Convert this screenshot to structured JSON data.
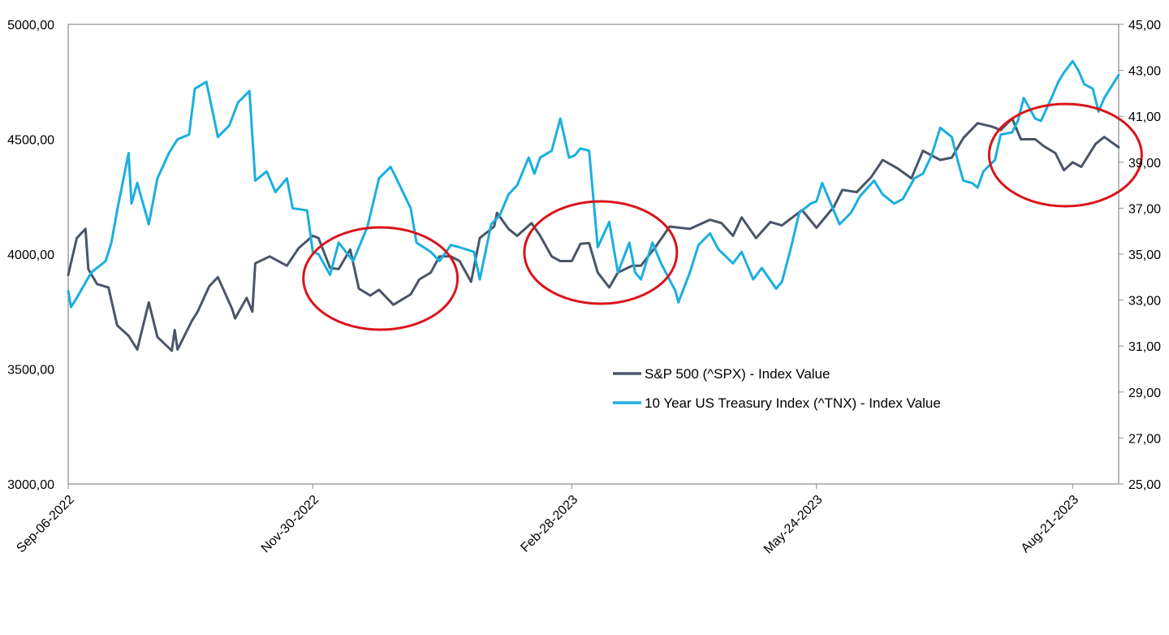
{
  "chart_data": {
    "type": "line",
    "x_ticks": [
      "Sep-06-2022",
      "Nov-30-2022",
      "Feb-28-2023",
      "May-24-2023",
      "Aug-21-2023"
    ],
    "y_left": {
      "range": [
        3000,
        5000
      ],
      "ticks": [
        "3000,00",
        "3500,00",
        "4000,00",
        "4500,00",
        "5000,00"
      ]
    },
    "y_right": {
      "range": [
        25,
        45
      ],
      "ticks": [
        "25,00",
        "27,00",
        "29,00",
        "31,00",
        "33,00",
        "35,00",
        "37,00",
        "39,00",
        "41,00",
        "43,00",
        "45,00"
      ]
    },
    "grid": false,
    "legend_position": "center-right",
    "highlight_color": "#d9151b",
    "highlights": [
      {
        "from": "2022-11-30",
        "to": "2023-01-16"
      },
      {
        "from": "2023-02-14",
        "to": "2023-04-03"
      },
      {
        "from": "2023-07-31",
        "to": "2023-09-06"
      }
    ],
    "series": [
      {
        "name": "S&P 500 (^SPX) - Index Value",
        "axis": "left",
        "color": "#4a5568",
        "points": [
          [
            "2022-09-06",
            3910
          ],
          [
            "2022-09-09",
            4070
          ],
          [
            "2022-09-12",
            4110
          ],
          [
            "2022-09-13",
            3935
          ],
          [
            "2022-09-16",
            3870
          ],
          [
            "2022-09-20",
            3855
          ],
          [
            "2022-09-23",
            3690
          ],
          [
            "2022-09-27",
            3645
          ],
          [
            "2022-09-30",
            3585
          ],
          [
            "2022-10-04",
            3790
          ],
          [
            "2022-10-07",
            3640
          ],
          [
            "2022-10-12",
            3580
          ],
          [
            "2022-10-13",
            3670
          ],
          [
            "2022-10-14",
            3585
          ],
          [
            "2022-10-19",
            3710
          ],
          [
            "2022-10-21",
            3750
          ],
          [
            "2022-10-25",
            3860
          ],
          [
            "2022-10-28",
            3900
          ],
          [
            "2022-11-02",
            3760
          ],
          [
            "2022-11-03",
            3720
          ],
          [
            "2022-11-07",
            3810
          ],
          [
            "2022-11-09",
            3750
          ],
          [
            "2022-11-10",
            3960
          ],
          [
            "2022-11-15",
            3990
          ],
          [
            "2022-11-21",
            3950
          ],
          [
            "2022-11-25",
            4025
          ],
          [
            "2022-11-30",
            4080
          ],
          [
            "2022-12-02",
            4070
          ],
          [
            "2022-12-06",
            3940
          ],
          [
            "2022-12-09",
            3935
          ],
          [
            "2022-12-13",
            4020
          ],
          [
            "2022-12-16",
            3850
          ],
          [
            "2022-12-20",
            3820
          ],
          [
            "2022-12-23",
            3845
          ],
          [
            "2022-12-28",
            3780
          ],
          [
            "2023-01-03",
            3825
          ],
          [
            "2023-01-06",
            3890
          ],
          [
            "2023-01-10",
            3920
          ],
          [
            "2023-01-13",
            3990
          ],
          [
            "2023-01-17",
            3990
          ],
          [
            "2023-01-20",
            3970
          ],
          [
            "2023-01-24",
            3880
          ],
          [
            "2023-01-27",
            4070
          ],
          [
            "2023-02-01",
            4120
          ],
          [
            "2023-02-02",
            4180
          ],
          [
            "2023-02-06",
            4110
          ],
          [
            "2023-02-09",
            4080
          ],
          [
            "2023-02-14",
            4135
          ],
          [
            "2023-02-17",
            4080
          ],
          [
            "2023-02-21",
            3990
          ],
          [
            "2023-02-24",
            3970
          ],
          [
            "2023-02-28",
            3970
          ],
          [
            "2023-03-03",
            4045
          ],
          [
            "2023-03-06",
            4048
          ],
          [
            "2023-03-09",
            3920
          ],
          [
            "2023-03-13",
            3855
          ],
          [
            "2023-03-16",
            3920
          ],
          [
            "2023-03-21",
            3950
          ],
          [
            "2023-03-24",
            3950
          ],
          [
            "2023-03-29",
            4030
          ],
          [
            "2023-04-03",
            4120
          ],
          [
            "2023-04-10",
            4110
          ],
          [
            "2023-04-17",
            4150
          ],
          [
            "2023-04-21",
            4135
          ],
          [
            "2023-04-25",
            4080
          ],
          [
            "2023-04-28",
            4160
          ],
          [
            "2023-05-03",
            4070
          ],
          [
            "2023-05-08",
            4140
          ],
          [
            "2023-05-12",
            4125
          ],
          [
            "2023-05-19",
            4192
          ],
          [
            "2023-05-24",
            4115
          ],
          [
            "2023-05-30",
            4205
          ],
          [
            "2023-06-02",
            4280
          ],
          [
            "2023-06-07",
            4270
          ],
          [
            "2023-06-12",
            4335
          ],
          [
            "2023-06-16",
            4410
          ],
          [
            "2023-06-21",
            4375
          ],
          [
            "2023-06-26",
            4330
          ],
          [
            "2023-06-30",
            4450
          ],
          [
            "2023-07-06",
            4410
          ],
          [
            "2023-07-10",
            4420
          ],
          [
            "2023-07-14",
            4505
          ],
          [
            "2023-07-19",
            4570
          ],
          [
            "2023-07-24",
            4555
          ],
          [
            "2023-07-27",
            4540
          ],
          [
            "2023-07-31",
            4590
          ],
          [
            "2023-08-03",
            4500
          ],
          [
            "2023-08-08",
            4500
          ],
          [
            "2023-08-11",
            4470
          ],
          [
            "2023-08-15",
            4440
          ],
          [
            "2023-08-18",
            4365
          ],
          [
            "2023-08-21",
            4400
          ],
          [
            "2023-08-24",
            4380
          ],
          [
            "2023-08-29",
            4480
          ],
          [
            "2023-09-01",
            4510
          ],
          [
            "2023-09-06",
            4465
          ]
        ]
      },
      {
        "name": "10 Year US Treasury Index (^TNX) - Index Value",
        "axis": "right",
        "color": "#1aafe0",
        "points": [
          [
            "2022-09-06",
            33.4
          ],
          [
            "2022-09-07",
            32.7
          ],
          [
            "2022-09-09",
            33.1
          ],
          [
            "2022-09-14",
            34.2
          ],
          [
            "2022-09-19",
            34.7
          ],
          [
            "2022-09-21",
            35.5
          ],
          [
            "2022-09-23",
            36.9
          ],
          [
            "2022-09-27",
            39.4
          ],
          [
            "2022-09-28",
            37.2
          ],
          [
            "2022-09-30",
            38.1
          ],
          [
            "2022-10-04",
            36.3
          ],
          [
            "2022-10-07",
            38.3
          ],
          [
            "2022-10-11",
            39.4
          ],
          [
            "2022-10-14",
            40.0
          ],
          [
            "2022-10-18",
            40.2
          ],
          [
            "2022-10-20",
            42.2
          ],
          [
            "2022-10-24",
            42.5
          ],
          [
            "2022-10-28",
            40.1
          ],
          [
            "2022-11-01",
            40.6
          ],
          [
            "2022-11-04",
            41.6
          ],
          [
            "2022-11-08",
            42.1
          ],
          [
            "2022-11-10",
            38.2
          ],
          [
            "2022-11-14",
            38.6
          ],
          [
            "2022-11-17",
            37.7
          ],
          [
            "2022-11-21",
            38.3
          ],
          [
            "2022-11-23",
            37.0
          ],
          [
            "2022-11-28",
            36.9
          ],
          [
            "2022-11-30",
            35.1
          ],
          [
            "2022-12-02",
            35.0
          ],
          [
            "2022-12-06",
            34.1
          ],
          [
            "2022-12-09",
            35.5
          ],
          [
            "2022-12-14",
            34.7
          ],
          [
            "2022-12-19",
            36.2
          ],
          [
            "2022-12-23",
            38.3
          ],
          [
            "2022-12-27",
            38.8
          ],
          [
            "2022-12-29",
            38.3
          ],
          [
            "2023-01-03",
            37.0
          ],
          [
            "2023-01-05",
            35.5
          ],
          [
            "2023-01-10",
            35.1
          ],
          [
            "2023-01-13",
            34.7
          ],
          [
            "2023-01-17",
            35.4
          ],
          [
            "2023-01-20",
            35.3
          ],
          [
            "2023-01-25",
            35.1
          ],
          [
            "2023-01-27",
            33.9
          ],
          [
            "2023-01-31",
            36.3
          ],
          [
            "2023-02-03",
            36.7
          ],
          [
            "2023-02-06",
            37.6
          ],
          [
            "2023-02-09",
            38.0
          ],
          [
            "2023-02-13",
            39.2
          ],
          [
            "2023-02-15",
            38.5
          ],
          [
            "2023-02-17",
            39.2
          ],
          [
            "2023-02-21",
            39.5
          ],
          [
            "2023-02-24",
            40.9
          ],
          [
            "2023-02-27",
            39.2
          ],
          [
            "2023-03-01",
            39.3
          ],
          [
            "2023-03-03",
            39.6
          ],
          [
            "2023-03-06",
            39.5
          ],
          [
            "2023-03-09",
            35.3
          ],
          [
            "2023-03-13",
            36.4
          ],
          [
            "2023-03-16",
            34.2
          ],
          [
            "2023-03-20",
            35.5
          ],
          [
            "2023-03-22",
            34.2
          ],
          [
            "2023-03-24",
            33.9
          ],
          [
            "2023-03-28",
            35.5
          ],
          [
            "2023-03-31",
            34.6
          ],
          [
            "2023-04-05",
            33.4
          ],
          [
            "2023-04-06",
            32.9
          ],
          [
            "2023-04-10",
            34.2
          ],
          [
            "2023-04-13",
            35.4
          ],
          [
            "2023-04-17",
            35.9
          ],
          [
            "2023-04-20",
            35.2
          ],
          [
            "2023-04-25",
            34.6
          ],
          [
            "2023-04-28",
            35.1
          ],
          [
            "2023-05-02",
            33.9
          ],
          [
            "2023-05-05",
            34.4
          ],
          [
            "2023-05-10",
            33.5
          ],
          [
            "2023-05-12",
            33.8
          ],
          [
            "2023-05-15",
            35.2
          ],
          [
            "2023-05-18",
            36.8
          ],
          [
            "2023-05-22",
            37.2
          ],
          [
            "2023-05-24",
            37.3
          ],
          [
            "2023-05-26",
            38.1
          ],
          [
            "2023-06-01",
            36.3
          ],
          [
            "2023-06-05",
            36.8
          ],
          [
            "2023-06-08",
            37.5
          ],
          [
            "2023-06-13",
            38.2
          ],
          [
            "2023-06-16",
            37.6
          ],
          [
            "2023-06-20",
            37.2
          ],
          [
            "2023-06-23",
            37.4
          ],
          [
            "2023-06-27",
            38.3
          ],
          [
            "2023-06-30",
            38.5
          ],
          [
            "2023-07-03",
            39.3
          ],
          [
            "2023-07-06",
            40.5
          ],
          [
            "2023-07-10",
            40.1
          ],
          [
            "2023-07-12",
            39.1
          ],
          [
            "2023-07-14",
            38.2
          ],
          [
            "2023-07-17",
            38.1
          ],
          [
            "2023-07-19",
            37.9
          ],
          [
            "2023-07-21",
            38.6
          ],
          [
            "2023-07-25",
            39.1
          ],
          [
            "2023-07-27",
            40.2
          ],
          [
            "2023-07-31",
            40.3
          ],
          [
            "2023-08-02",
            40.8
          ],
          [
            "2023-08-04",
            41.8
          ],
          [
            "2023-08-08",
            40.9
          ],
          [
            "2023-08-10",
            40.8
          ],
          [
            "2023-08-14",
            41.9
          ],
          [
            "2023-08-16",
            42.5
          ],
          [
            "2023-08-18",
            42.9
          ],
          [
            "2023-08-21",
            43.4
          ],
          [
            "2023-08-23",
            43.0
          ],
          [
            "2023-08-25",
            42.4
          ],
          [
            "2023-08-28",
            42.2
          ],
          [
            "2023-08-30",
            41.2
          ],
          [
            "2023-09-01",
            41.8
          ],
          [
            "2023-09-06",
            42.8
          ]
        ]
      }
    ]
  }
}
